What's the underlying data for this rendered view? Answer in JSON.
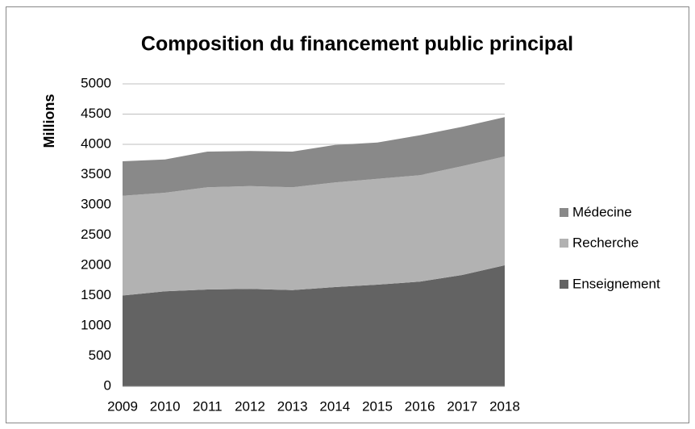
{
  "chart_data": {
    "type": "stacked_area",
    "title": "Composition du financement public principal",
    "y_label": "Millions",
    "categories": [
      "2009",
      "2010",
      "2011",
      "2012",
      "2013",
      "2014",
      "2015",
      "2016",
      "2017",
      "2018"
    ],
    "series": [
      {
        "name": "Enseignement",
        "color": "#636363",
        "values": [
          1500,
          1570,
          1600,
          1610,
          1590,
          1640,
          1680,
          1730,
          1840,
          2000
        ]
      },
      {
        "name": "Recherche",
        "color": "#b2b2b2",
        "values": [
          1650,
          1630,
          1690,
          1700,
          1700,
          1730,
          1750,
          1760,
          1800,
          1800
        ]
      },
      {
        "name": "Médecine",
        "color": "#898989",
        "values": [
          570,
          550,
          590,
          580,
          590,
          620,
          600,
          660,
          650,
          650
        ]
      }
    ],
    "ylim": [
      0,
      5000
    ],
    "yticks": [
      0,
      500,
      1000,
      1500,
      2000,
      2500,
      3000,
      3500,
      4000,
      4500,
      5000
    ],
    "grid": true,
    "legend": "right"
  }
}
